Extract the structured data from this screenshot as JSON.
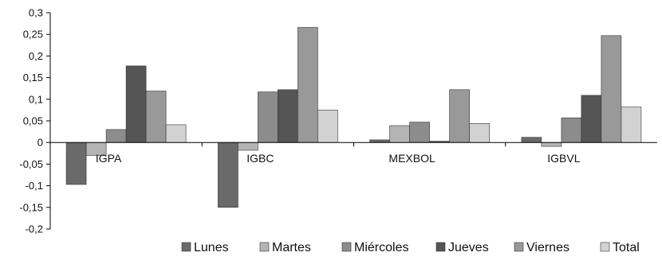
{
  "chart_data": {
    "type": "bar",
    "categories": [
      "IGPA",
      "IGBC",
      "MEXBOL",
      "IGBVL"
    ],
    "series": [
      {
        "name": "Lunes",
        "color": "#6a6a6a",
        "values": [
          -0.097,
          -0.15,
          0.006,
          0.012
        ]
      },
      {
        "name": "Martes",
        "color": "#b4b4b4",
        "values": [
          -0.03,
          -0.018,
          0.039,
          -0.009
        ]
      },
      {
        "name": "Miércoles",
        "color": "#8c8c8c",
        "values": [
          0.03,
          0.117,
          0.047,
          0.057
        ]
      },
      {
        "name": "Jueves",
        "color": "#555555",
        "values": [
          0.177,
          0.122,
          0.003,
          0.109
        ]
      },
      {
        "name": "Viernes",
        "color": "#999999",
        "values": [
          0.119,
          0.266,
          0.122,
          0.247
        ]
      },
      {
        "name": "Total",
        "color": "#d2d2d2",
        "values": [
          0.041,
          0.075,
          0.044,
          0.082
        ]
      }
    ],
    "ylim": [
      -0.2,
      0.3
    ],
    "y_ticks": [
      "0,3",
      "0,25",
      "0,2",
      "0,15",
      "0,1",
      "0,05",
      "0",
      "-0,05",
      "-0,1",
      "-0,15",
      "-0,2"
    ],
    "legend_position": "bottom",
    "grid": false
  }
}
